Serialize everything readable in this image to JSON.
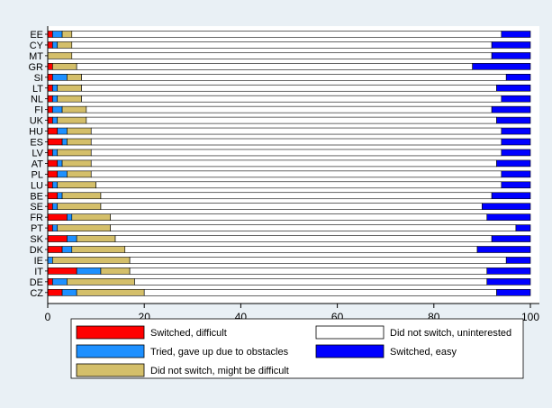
{
  "chart_data": {
    "type": "bar",
    "orientation": "horizontal",
    "stacked": true,
    "xlim": [
      0,
      100
    ],
    "xticks": [
      0,
      20,
      40,
      60,
      80,
      100
    ],
    "grid": false,
    "legend_position": "bottom",
    "categories": [
      "EE",
      "CY",
      "MT",
      "GR",
      "SI",
      "LT",
      "NL",
      "FI",
      "UK",
      "HU",
      "ES",
      "LV",
      "AT",
      "PL",
      "LU",
      "BE",
      "SE",
      "FR",
      "PT",
      "SK",
      "DK",
      "IE",
      "IT",
      "DE",
      "CZ"
    ],
    "series": [
      {
        "name": "Switched, difficult",
        "color": "#ff0000",
        "values": [
          1,
          1,
          0,
          1,
          1,
          1,
          1,
          1,
          1,
          2,
          3,
          1,
          2,
          2,
          1,
          2,
          1,
          4,
          1,
          4,
          3,
          0,
          6,
          1,
          3
        ]
      },
      {
        "name": "Tried, gave up due to obstacles",
        "color": "#1e90ff",
        "values": [
          2,
          1,
          0,
          0,
          3,
          1,
          1,
          2,
          1,
          2,
          1,
          1,
          1,
          2,
          1,
          1,
          1,
          1,
          1,
          2,
          2,
          1,
          5,
          3,
          3
        ]
      },
      {
        "name": "Did not switch, might be difficult",
        "color": "#d4bf6a",
        "values": [
          2,
          3,
          5,
          5,
          3,
          5,
          5,
          5,
          6,
          5,
          5,
          7,
          6,
          5,
          8,
          8,
          9,
          8,
          11,
          8,
          11,
          16,
          6,
          14,
          14
        ]
      },
      {
        "name": "Did not switch, uninterested",
        "color": "#ffffff",
        "values": [
          89,
          87,
          87,
          82,
          88,
          86,
          87,
          84,
          85,
          85,
          85,
          85,
          84,
          85,
          84,
          81,
          79,
          78,
          84,
          78,
          73,
          78,
          74,
          73,
          73
        ]
      },
      {
        "name": "Switched, easy",
        "color": "#0000ff",
        "values": [
          6,
          8,
          8,
          12,
          5,
          7,
          6,
          8,
          7,
          6,
          6,
          6,
          7,
          6,
          6,
          8,
          10,
          9,
          3,
          8,
          11,
          5,
          9,
          9,
          7
        ]
      }
    ],
    "legend": {
      "items": [
        {
          "label": "Switched, difficult",
          "color": "#ff0000"
        },
        {
          "label": "Did not switch, uninterested",
          "color": "#ffffff"
        },
        {
          "label": "Tried, gave up due to obstacles",
          "color": "#1e90ff"
        },
        {
          "label": "Switched, easy",
          "color": "#0000ff"
        },
        {
          "label": "Did not switch, might be difficult",
          "color": "#d4bf6a"
        }
      ]
    }
  }
}
